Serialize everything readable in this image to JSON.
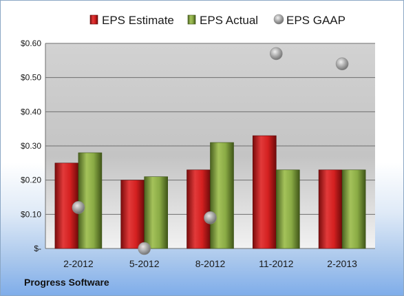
{
  "caption": "Progress Software",
  "chart_data": {
    "type": "bar",
    "categories": [
      "2-2012",
      "5-2012",
      "8-2012",
      "11-2012",
      "2-2013"
    ],
    "series": [
      {
        "name": "EPS Estimate",
        "kind": "bar",
        "color": "#cc2222",
        "values": [
          0.25,
          0.2,
          0.23,
          0.33,
          0.23
        ]
      },
      {
        "name": "EPS Actual",
        "kind": "bar",
        "color": "#7a9a3a",
        "values": [
          0.28,
          0.21,
          0.31,
          0.23,
          0.23
        ]
      },
      {
        "name": "EPS GAAP",
        "kind": "scatter",
        "color": "#a0a0a0",
        "values": [
          0.12,
          0.0,
          0.09,
          0.57,
          0.54
        ]
      }
    ],
    "yticks": [
      0,
      0.1,
      0.2,
      0.3,
      0.4,
      0.5,
      0.6
    ],
    "ytick_labels": [
      "$-",
      "$0.10",
      "$0.20",
      "$0.30",
      "$0.40",
      "$0.50",
      "$0.60"
    ],
    "ylim": [
      0,
      0.6
    ],
    "legend_position": "top",
    "grid": true
  }
}
